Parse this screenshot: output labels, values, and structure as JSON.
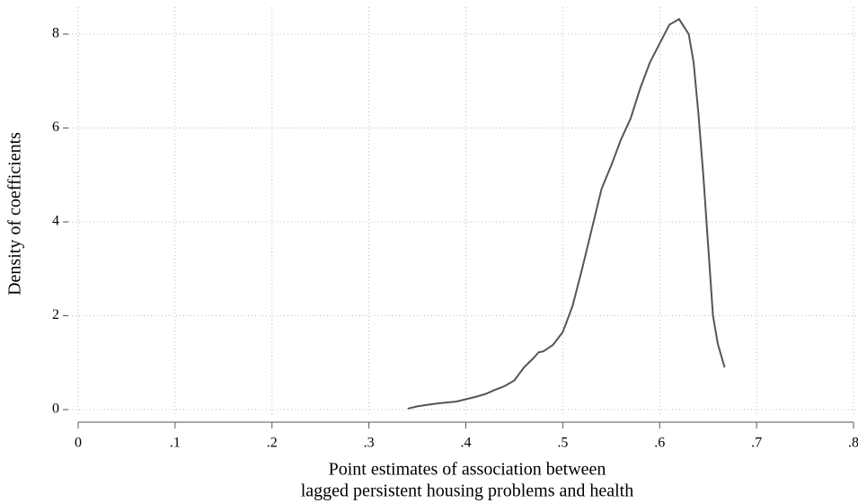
{
  "chart_data": {
    "type": "line",
    "xlabel": [
      "Point estimates of association between",
      "lagged persistent housing problems and health"
    ],
    "ylabel": "Density of coefficients",
    "x": [
      0.34,
      0.35,
      0.36,
      0.37,
      0.38,
      0.39,
      0.4,
      0.41,
      0.42,
      0.43,
      0.44,
      0.45,
      0.46,
      0.47,
      0.475,
      0.48,
      0.49,
      0.5,
      0.51,
      0.52,
      0.53,
      0.54,
      0.55,
      0.56,
      0.57,
      0.58,
      0.59,
      0.6,
      0.61,
      0.62,
      0.63,
      0.635,
      0.64,
      0.645,
      0.65,
      0.655,
      0.66,
      0.667
    ],
    "series": [
      {
        "color": "#555555",
        "values": [
          0.02,
          0.07,
          0.1,
          0.13,
          0.15,
          0.17,
          0.22,
          0.27,
          0.33,
          0.42,
          0.5,
          0.62,
          0.9,
          1.1,
          1.22,
          1.24,
          1.38,
          1.65,
          2.2,
          3.0,
          3.85,
          4.7,
          5.2,
          5.75,
          6.2,
          6.85,
          7.4,
          7.8,
          8.2,
          8.32,
          8.0,
          7.4,
          6.3,
          5.0,
          3.5,
          2.0,
          1.4,
          0.9
        ]
      }
    ],
    "xlim": [
      0,
      0.8
    ],
    "xticks": [
      0,
      {
        "value": 0.1,
        "label": ".1"
      },
      {
        "value": 0.2,
        "label": ".2"
      },
      {
        "value": 0.3,
        "label": ".3"
      },
      {
        "value": 0.4,
        "label": ".4"
      },
      {
        "value": 0.5,
        "label": ".5"
      },
      {
        "value": 0.6,
        "label": ".6"
      },
      {
        "value": 0.7,
        "label": ".7"
      },
      {
        "value": 0.8,
        "label": ".8"
      }
    ],
    "ylim": [
      0,
      8
    ],
    "yticks": [
      0,
      2,
      4,
      6,
      8
    ],
    "grid": true
  }
}
